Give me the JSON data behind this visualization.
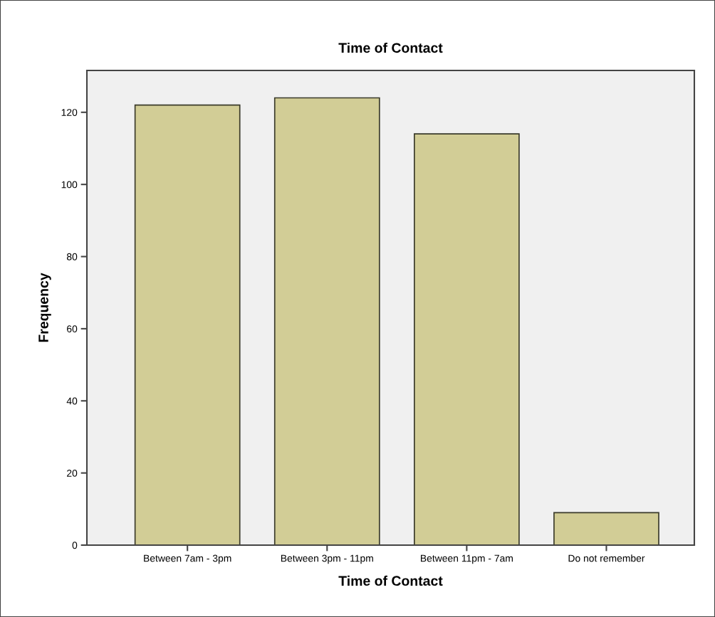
{
  "chart_data": {
    "type": "bar",
    "title": "Time of Contact",
    "xlabel": "Time of Contact",
    "ylabel": "Frequency",
    "categories": [
      "Between 7am - 3pm",
      "Between 3pm - 11pm",
      "Between 11pm - 7am",
      "Do not remember"
    ],
    "values": [
      122,
      124,
      114,
      9
    ],
    "color": "#d2cd96",
    "ylim": [
      0,
      131.6
    ],
    "yticks": [
      0,
      20,
      40,
      60,
      80,
      100,
      120
    ],
    "grid": false
  }
}
